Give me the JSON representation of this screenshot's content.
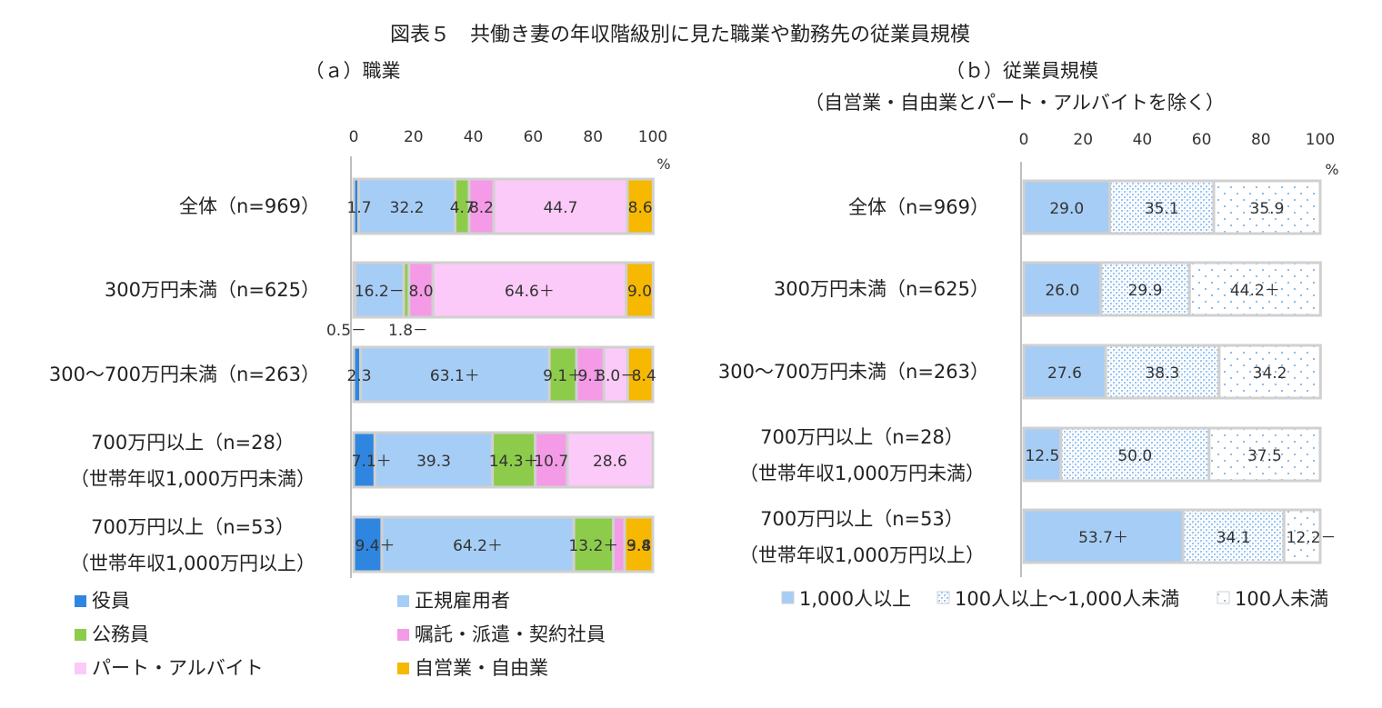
{
  "title": "図表５　共働き妻の年収階級別に見た職業や勤務先の従業員規模",
  "unit": "%",
  "chart_data": [
    {
      "type": "bar",
      "orientation": "horizontal",
      "stacked": true,
      "title": "（ａ）職業",
      "xlim": [
        0,
        100
      ],
      "xticks": [
        "0",
        "20",
        "40",
        "60",
        "80",
        "100"
      ],
      "unit": "%",
      "categories": [
        [
          "全体（n=969）"
        ],
        [
          "300万円未満（n=625）"
        ],
        [
          "300～700万円未満（n=263）"
        ],
        [
          "700万円以上（n=28）",
          "（世帯年収1,000万円未満）"
        ],
        [
          "700万円以上（n=53）",
          "（世帯年収1,000万円以上）"
        ]
      ],
      "series": [
        {
          "name": "役員",
          "color": "#2f86e0",
          "values": [
            1.7,
            0.5,
            2.3,
            7.1,
            9.4
          ],
          "labels": [
            "1.7",
            "0.5－",
            "2.3",
            "7.1＋",
            "9.4＋"
          ]
        },
        {
          "name": "正規雇用者",
          "color": "#a6cdf5",
          "values": [
            32.2,
            16.2,
            63.1,
            39.3,
            64.2
          ],
          "labels": [
            "32.2",
            "16.2－",
            "63.1＋",
            "39.3",
            "64.2＋"
          ]
        },
        {
          "name": "公務員",
          "color": "#8ccc4a",
          "values": [
            4.7,
            1.8,
            9.1,
            14.3,
            13.2
          ],
          "labels": [
            "4.7",
            "1.8－",
            "9.1＋",
            "14.3＋",
            "13.2＋"
          ]
        },
        {
          "name": "嘱託・派遣・契約社員",
          "color": "#f59ae6",
          "values": [
            8.2,
            8.0,
            9.1,
            10.7,
            3.8
          ],
          "labels": [
            "8.2",
            "8.0",
            "9.1",
            "10.7",
            "3.8"
          ]
        },
        {
          "name": "パート・アルバイト",
          "color": "#fbcaf8",
          "values": [
            44.7,
            64.6,
            8.0,
            28.6,
            0
          ],
          "labels": [
            "44.7",
            "64.6＋",
            "8.0－",
            "28.6",
            ""
          ]
        },
        {
          "name": "自営業・自由業",
          "color": "#f6b800",
          "values": [
            8.6,
            9.0,
            8.4,
            0,
            9.4
          ],
          "labels": [
            "8.6",
            "9.0",
            "8.4",
            "",
            "9.4"
          ]
        }
      ]
    },
    {
      "type": "bar",
      "orientation": "horizontal",
      "stacked": true,
      "title": "（ｂ）従業員規模",
      "subtitle": "（自営業・自由業とパート・アルバイトを除く）",
      "xlim": [
        0,
        100
      ],
      "xticks": [
        "0",
        "20",
        "40",
        "60",
        "80",
        "100"
      ],
      "unit": "%",
      "categories": [
        [
          "全体（n=969）"
        ],
        [
          "300万円未満（n=625）"
        ],
        [
          "300～700万円未満（n=263）"
        ],
        [
          "700万円以上（n=28）",
          "（世帯年収1,000万円未満）"
        ],
        [
          "700万円以上（n=53）",
          "（世帯年収1,000万円以上）"
        ]
      ],
      "series": [
        {
          "name": "1,000人以上",
          "color": "#a6cdf5",
          "pattern": "solid",
          "values": [
            29.0,
            26.0,
            27.6,
            12.5,
            53.7
          ],
          "labels": [
            "29.0",
            "26.0",
            "27.6",
            "12.5",
            "53.7＋"
          ]
        },
        {
          "name": "100人以上～1,000人未満",
          "color": "#a6cdf5",
          "pattern": "fine",
          "values": [
            35.1,
            29.9,
            38.3,
            50.0,
            34.1
          ],
          "labels": [
            "35.1",
            "29.9",
            "38.3",
            "50.0",
            "34.1"
          ]
        },
        {
          "name": "100人未満",
          "color": "#a6cdf5",
          "pattern": "sparse",
          "values": [
            35.9,
            44.2,
            34.2,
            37.5,
            12.2
          ],
          "labels": [
            "35.9",
            "44.2＋",
            "34.2",
            "37.5",
            "12.2－"
          ]
        }
      ]
    }
  ]
}
